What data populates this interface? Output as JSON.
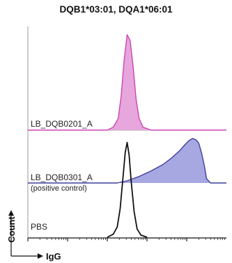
{
  "title": "DQB1*03:01, DQA1*06:01",
  "chart_data": {
    "type": "area",
    "title": "DQB1*03:01, DQA1*06:01",
    "xlabel": "IgG",
    "ylabel": "Count",
    "x_scale": "log",
    "xlim": [
      0,
      1
    ],
    "series": [
      {
        "name": "LB_DQB0201_A",
        "panel": "top",
        "color": "#cc44b8",
        "fill": "#e7a6dc",
        "x": [
          0.0,
          0.4,
          0.43,
          0.455,
          0.47,
          0.485,
          0.5,
          0.515,
          0.53,
          0.545,
          0.56,
          0.58,
          0.62,
          1.0
        ],
        "y": [
          0.0,
          0.0,
          0.03,
          0.12,
          0.35,
          0.72,
          0.98,
          0.92,
          0.65,
          0.32,
          0.12,
          0.03,
          0.0,
          0.0
        ]
      },
      {
        "name": "LB_DQB0301_A",
        "sublabel": "(positive control)",
        "panel": "middle",
        "color": "#3d3f9e",
        "fill": "#a7a7e2",
        "x": [
          0.0,
          0.45,
          0.5,
          0.56,
          0.62,
          0.68,
          0.72,
          0.76,
          0.79,
          0.81,
          0.83,
          0.845,
          0.86,
          0.875,
          0.89,
          0.9,
          0.92,
          1.0
        ],
        "y": [
          0.0,
          0.0,
          0.04,
          0.12,
          0.22,
          0.34,
          0.45,
          0.58,
          0.7,
          0.78,
          0.82,
          0.8,
          0.74,
          0.55,
          0.3,
          0.08,
          0.0,
          0.0
        ]
      },
      {
        "name": "PBS",
        "panel": "overlay",
        "color": "#111111",
        "fill": "none",
        "x": [
          0.4,
          0.43,
          0.45,
          0.465,
          0.48,
          0.49,
          0.5,
          0.51,
          0.52,
          0.535,
          0.55,
          0.57,
          0.6
        ],
        "y": [
          0.0,
          0.03,
          0.1,
          0.28,
          0.6,
          0.82,
          0.92,
          0.8,
          0.55,
          0.25,
          0.08,
          0.02,
          0.0
        ]
      }
    ],
    "axis_ticks": "log minor ticks",
    "grid": false
  }
}
